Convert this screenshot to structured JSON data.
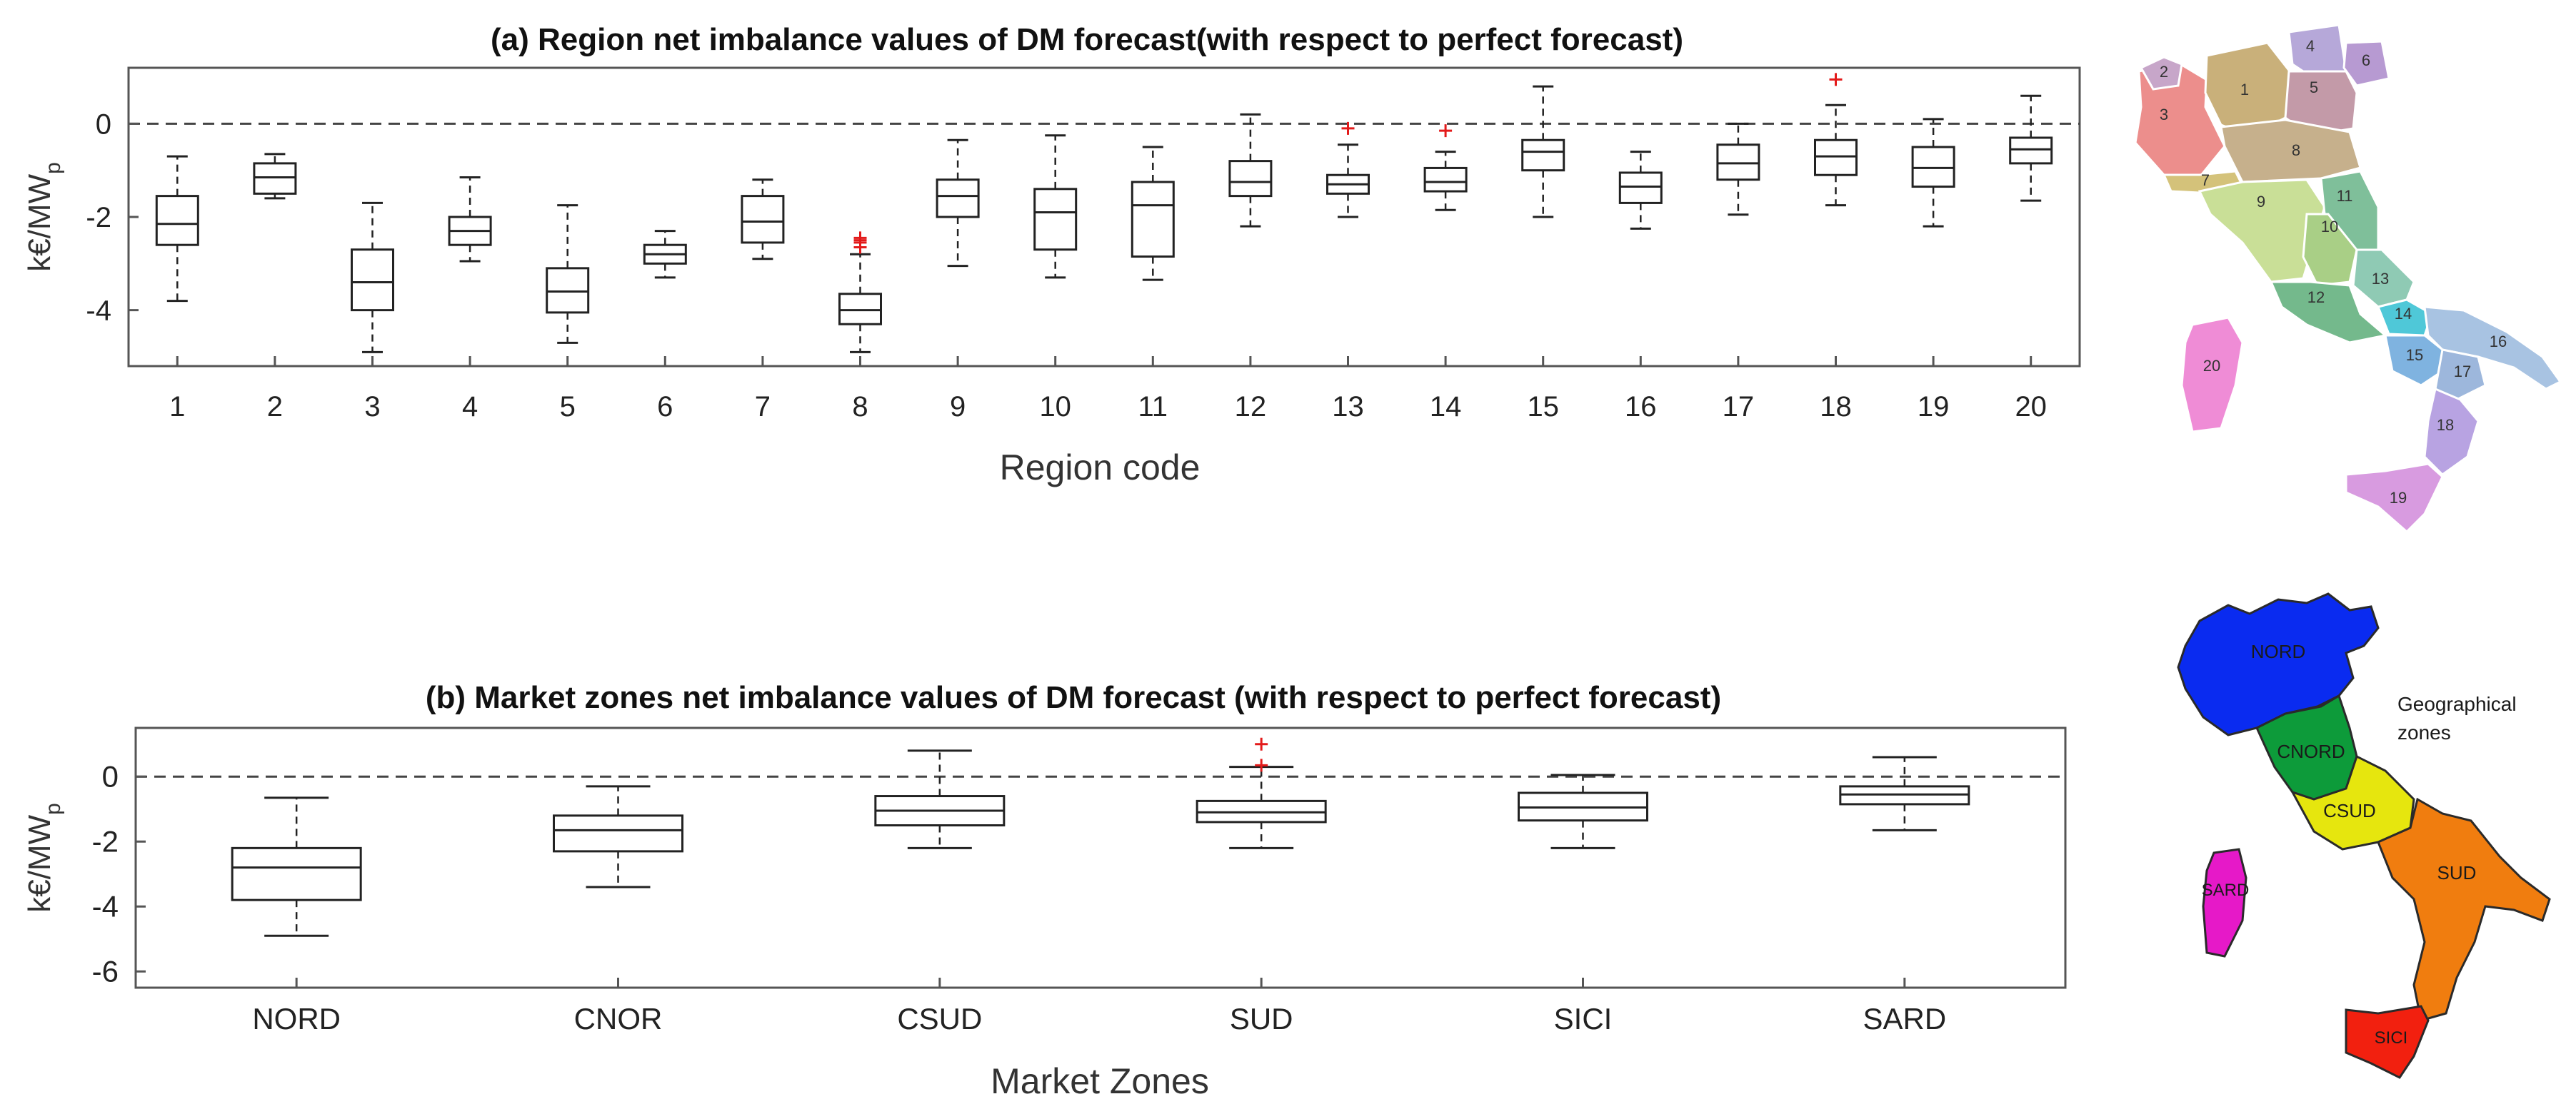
{
  "chart_data": [
    {
      "type": "boxplot",
      "title": "(a) Region net imbalance values of DM forecast(with respect to perfect forecast)",
      "xlabel": "Region code",
      "ylabel": {
        "main": "k€/MW",
        "sub": "p"
      },
      "ylim": [
        -5.2,
        1.2
      ],
      "yticks": [
        {
          "value": 0,
          "label": "0"
        },
        {
          "value": -2,
          "label": "-2"
        },
        {
          "value": -4,
          "label": "-4"
        }
      ],
      "reference_line": 0,
      "categories": [
        "1",
        "2",
        "3",
        "4",
        "5",
        "6",
        "7",
        "8",
        "9",
        "10",
        "11",
        "12",
        "13",
        "14",
        "15",
        "16",
        "17",
        "18",
        "19",
        "20"
      ],
      "boxes": [
        {
          "min": -3.8,
          "q1": -2.6,
          "median": -2.15,
          "q3": -1.55,
          "max": -0.7,
          "outliers": []
        },
        {
          "min": -1.6,
          "q1": -1.5,
          "median": -1.15,
          "q3": -0.85,
          "max": -0.65,
          "outliers": []
        },
        {
          "min": -4.9,
          "q1": -4.0,
          "median": -3.4,
          "q3": -2.7,
          "max": -1.7,
          "outliers": []
        },
        {
          "min": -2.95,
          "q1": -2.6,
          "median": -2.3,
          "q3": -2.0,
          "max": -1.15,
          "outliers": []
        },
        {
          "min": -4.7,
          "q1": -4.05,
          "median": -3.6,
          "q3": -3.1,
          "max": -1.75,
          "outliers": []
        },
        {
          "min": -3.3,
          "q1": -3.0,
          "median": -2.8,
          "q3": -2.6,
          "max": -2.3,
          "outliers": []
        },
        {
          "min": -2.9,
          "q1": -2.55,
          "median": -2.1,
          "q3": -1.55,
          "max": -1.2,
          "outliers": []
        },
        {
          "min": -4.9,
          "q1": -4.3,
          "median": -4.0,
          "q3": -3.65,
          "max": -2.8,
          "outliers": [
            -2.45,
            -2.5,
            -2.55,
            -2.65
          ]
        },
        {
          "min": -3.05,
          "q1": -2.0,
          "median": -1.55,
          "q3": -1.2,
          "max": -0.35,
          "outliers": []
        },
        {
          "min": -3.3,
          "q1": -2.7,
          "median": -1.9,
          "q3": -1.4,
          "max": -0.25,
          "outliers": []
        },
        {
          "min": -3.35,
          "q1": -2.85,
          "median": -1.75,
          "q3": -1.25,
          "max": -0.5,
          "outliers": []
        },
        {
          "min": -2.2,
          "q1": -1.55,
          "median": -1.25,
          "q3": -0.8,
          "max": 0.2,
          "outliers": []
        },
        {
          "min": -2.0,
          "q1": -1.5,
          "median": -1.3,
          "q3": -1.1,
          "max": -0.45,
          "outliers": [
            -0.1
          ]
        },
        {
          "min": -1.85,
          "q1": -1.45,
          "median": -1.25,
          "q3": -0.95,
          "max": -0.6,
          "outliers": [
            -0.15
          ]
        },
        {
          "min": -2.0,
          "q1": -1.0,
          "median": -0.6,
          "q3": -0.35,
          "max": 0.8,
          "outliers": []
        },
        {
          "min": -2.25,
          "q1": -1.7,
          "median": -1.35,
          "q3": -1.05,
          "max": -0.6,
          "outliers": []
        },
        {
          "min": -1.95,
          "q1": -1.2,
          "median": -0.85,
          "q3": -0.45,
          "max": 0.0,
          "outliers": []
        },
        {
          "min": -1.75,
          "q1": -1.1,
          "median": -0.7,
          "q3": -0.35,
          "max": 0.4,
          "outliers": [
            0.95
          ]
        },
        {
          "min": -2.2,
          "q1": -1.35,
          "median": -0.95,
          "q3": -0.5,
          "max": 0.1,
          "outliers": []
        },
        {
          "min": -1.65,
          "q1": -0.85,
          "median": -0.55,
          "q3": -0.3,
          "max": 0.6,
          "outliers": []
        }
      ]
    },
    {
      "type": "boxplot",
      "title": "(b) Market zones net imbalance values of DM forecast (with respect to perfect forecast)",
      "xlabel": "Market Zones",
      "ylabel": {
        "main": "k€/MW",
        "sub": "p"
      },
      "ylim": [
        -6.5,
        1.5
      ],
      "yticks": [
        {
          "value": 0,
          "label": "0"
        },
        {
          "value": -2,
          "label": "-2"
        },
        {
          "value": -4,
          "label": "-4"
        },
        {
          "value": -6,
          "label": "-6"
        }
      ],
      "reference_line": 0,
      "categories": [
        "NORD",
        "CNOR",
        "CSUD",
        "SUD",
        "SICI",
        "SARD"
      ],
      "boxes": [
        {
          "min": -4.9,
          "q1": -3.8,
          "median": -2.8,
          "q3": -2.2,
          "max": -0.65,
          "outliers": []
        },
        {
          "min": -3.4,
          "q1": -2.3,
          "median": -1.65,
          "q3": -1.2,
          "max": -0.3,
          "outliers": []
        },
        {
          "min": -2.2,
          "q1": -1.5,
          "median": -1.05,
          "q3": -0.6,
          "max": 0.8,
          "outliers": []
        },
        {
          "min": -2.2,
          "q1": -1.4,
          "median": -1.1,
          "q3": -0.75,
          "max": 0.3,
          "outliers": [
            0.35,
            1.0
          ]
        },
        {
          "min": -2.2,
          "q1": -1.35,
          "median": -0.95,
          "q3": -0.5,
          "max": 0.05,
          "outliers": []
        },
        {
          "min": -1.65,
          "q1": -0.85,
          "median": -0.55,
          "q3": -0.3,
          "max": 0.6,
          "outliers": []
        }
      ]
    }
  ],
  "maps": {
    "regions": {
      "numbers": [
        "1",
        "2",
        "3",
        "4",
        "5",
        "6",
        "7",
        "8",
        "9",
        "10",
        "11",
        "12",
        "13",
        "14",
        "15",
        "16",
        "17",
        "18",
        "19",
        "20"
      ],
      "colors": {
        "r1": "#c9b07a",
        "r2": "#c7a6c9",
        "r3": "#ec8e8c",
        "r4": "#b6a8d9",
        "r5": "#c39aa8",
        "r6": "#b79ad2",
        "r7": "#d4c27a",
        "r8": "#c6b08c",
        "r9": "#c9df97",
        "r10": "#a9cf86",
        "r11": "#7fbf9a",
        "r12": "#74b98c",
        "r13": "#8fcab4",
        "r14": "#4fc8d8",
        "r15": "#7fb3e0",
        "r16": "#a8c3e2",
        "r17": "#9db7dc",
        "r18": "#b8a3e2",
        "r19": "#d89be0",
        "r20": "#ef8cd6"
      }
    },
    "zones": {
      "caption_line1": "Geographical",
      "caption_line2": "zones",
      "labels": [
        "NORD",
        "CNORD",
        "CSUD",
        "SUD",
        "SARD",
        "SICI"
      ],
      "colors": {
        "NORD": "#0a2bf0",
        "CNORD": "#0d9b3a",
        "CSUD": "#e6e60e",
        "SUD": "#f07d0f",
        "SARD": "#e619c8",
        "SICI": "#f2200f"
      }
    }
  }
}
